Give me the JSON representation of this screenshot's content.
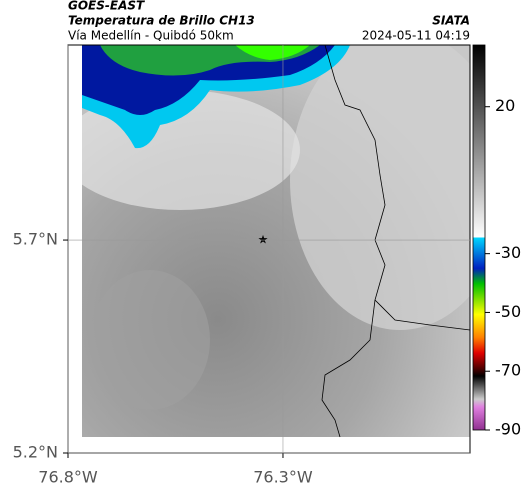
{
  "header": {
    "satellite": "GOES-EAST",
    "product": "Temperatura de Brillo CH13",
    "region": "Vía Medellín - Quibdó 50km",
    "source": "SIATA",
    "datetime": "2024-05-11 04:19"
  },
  "map": {
    "xlim": [
      -76.8,
      -75.865
    ],
    "ylim": [
      5.2,
      6.158
    ],
    "xticks": [
      {
        "value": -76.8,
        "label": "76.8°W"
      },
      {
        "value": -76.3,
        "label": "76.3°W"
      }
    ],
    "yticks": [
      {
        "value": 5.7,
        "label": "5.7°N"
      },
      {
        "value": 5.2,
        "label": "5.2°N"
      }
    ]
  },
  "colorbar": {
    "clim": [
      41,
      -90
    ],
    "ticks": [
      20,
      -30,
      -50,
      -70,
      -90
    ]
  }
}
